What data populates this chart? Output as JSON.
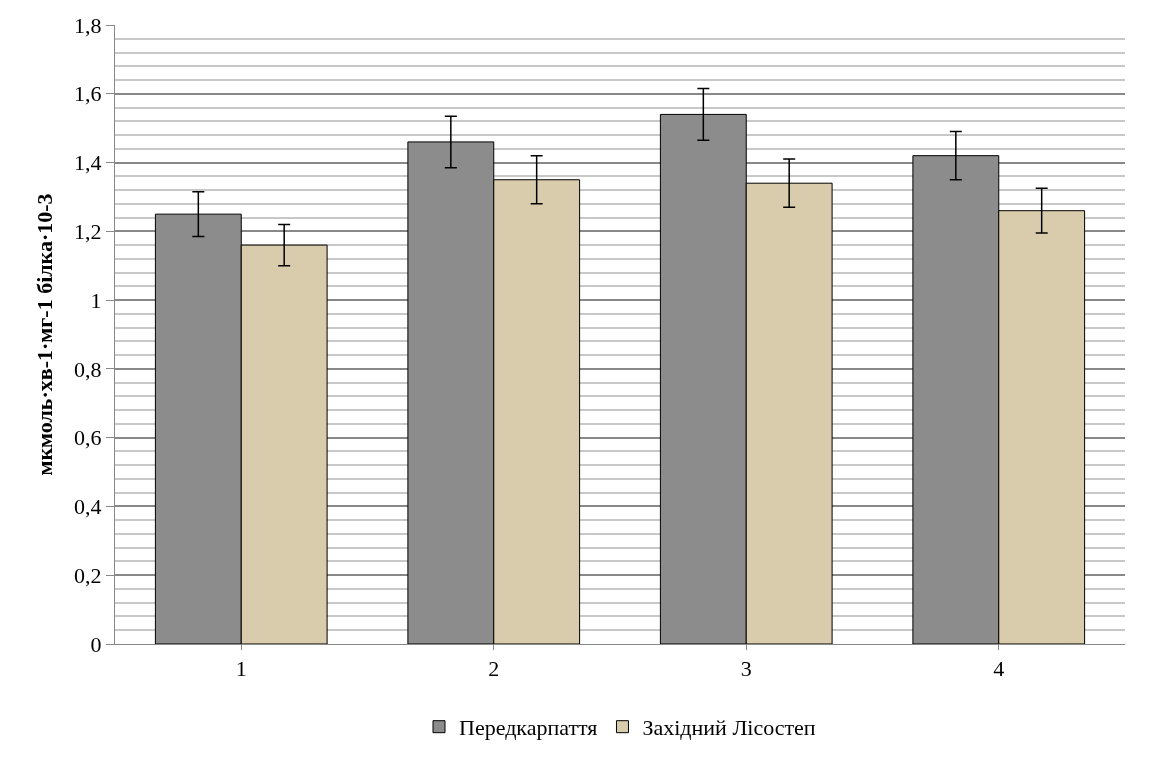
{
  "chart_data": {
    "type": "bar",
    "ylabel": "мкмоль·хв-1·мг-1 білка·10-3",
    "categories": [
      "1",
      "2",
      "3",
      "4"
    ],
    "series": [
      {
        "name": "Передкарпаття",
        "color": "#8c8c8c",
        "values": [
          1.25,
          1.46,
          1.54,
          1.42
        ],
        "errors": [
          0.065,
          0.075,
          0.075,
          0.07
        ]
      },
      {
        "name": "Західний Лісостеп",
        "color": "#d9ccac",
        "values": [
          1.16,
          1.35,
          1.34,
          1.26
        ],
        "errors": [
          0.06,
          0.07,
          0.07,
          0.065
        ]
      }
    ],
    "ylim": [
      0,
      1.8
    ],
    "yticks": [
      {
        "value": 0,
        "label": "0"
      },
      {
        "value": 0.2,
        "label": "0,2"
      },
      {
        "value": 0.4,
        "label": "0,4"
      },
      {
        "value": 0.6,
        "label": "0,6"
      },
      {
        "value": 0.8,
        "label": "0,8"
      },
      {
        "value": 1,
        "label": "1"
      },
      {
        "value": 1.2,
        "label": "1,2"
      },
      {
        "value": 1.4,
        "label": "1,4"
      },
      {
        "value": 1.6,
        "label": "1,6"
      },
      {
        "value": 1.8,
        "label": "1,8"
      }
    ],
    "grid": "y",
    "legend": "bottom"
  }
}
